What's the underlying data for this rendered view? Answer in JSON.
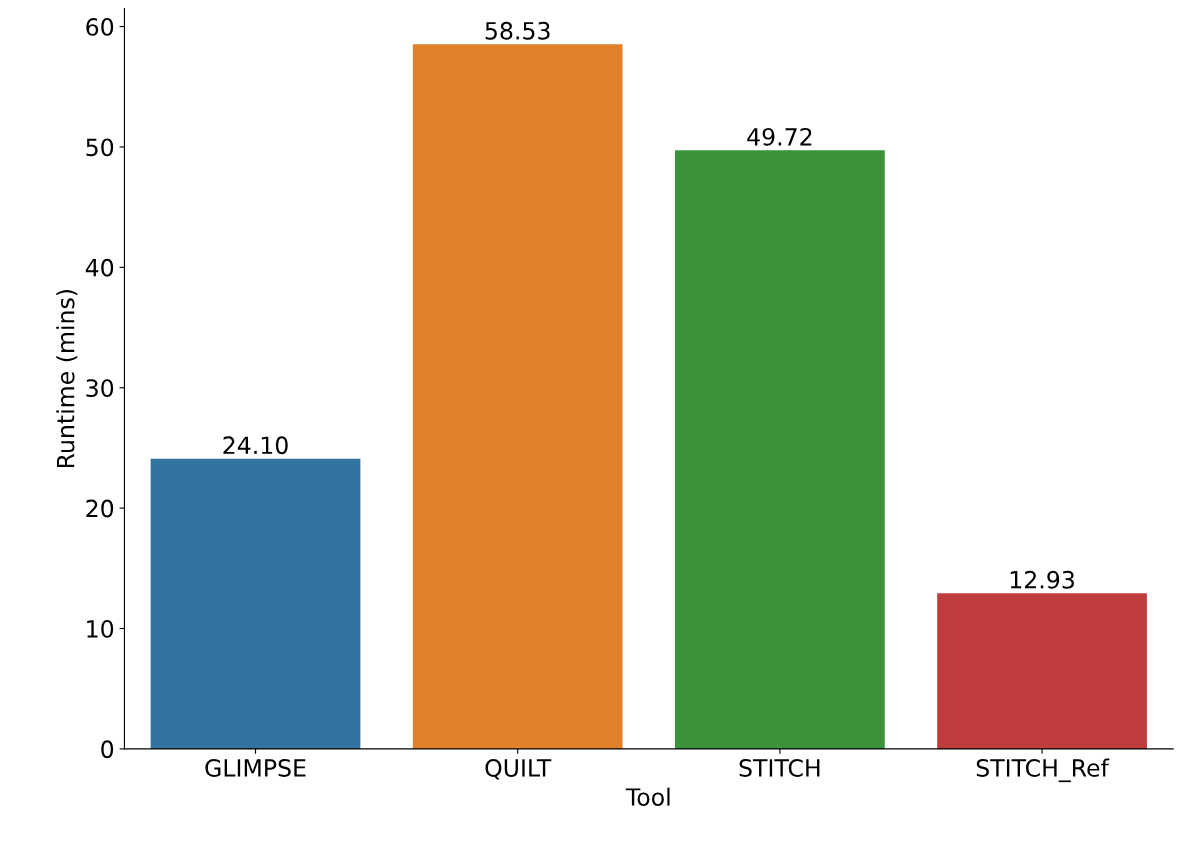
{
  "chart_data": {
    "type": "bar",
    "categories": [
      "GLIMPSE",
      "QUILT",
      "STITCH",
      "STITCH_Ref"
    ],
    "values": [
      24.1,
      58.53,
      49.72,
      12.93
    ],
    "value_labels": [
      "24.10",
      "58.53",
      "49.72",
      "12.93"
    ],
    "colors": [
      "#3274a1",
      "#e1812c",
      "#3a923a",
      "#c03d3e"
    ],
    "xlabel": "Tool",
    "ylabel": "Runtime (mins)",
    "ylim": [
      0,
      61.5
    ],
    "yticks": [
      0,
      10,
      20,
      30,
      40,
      50,
      60
    ],
    "grid": false
  }
}
